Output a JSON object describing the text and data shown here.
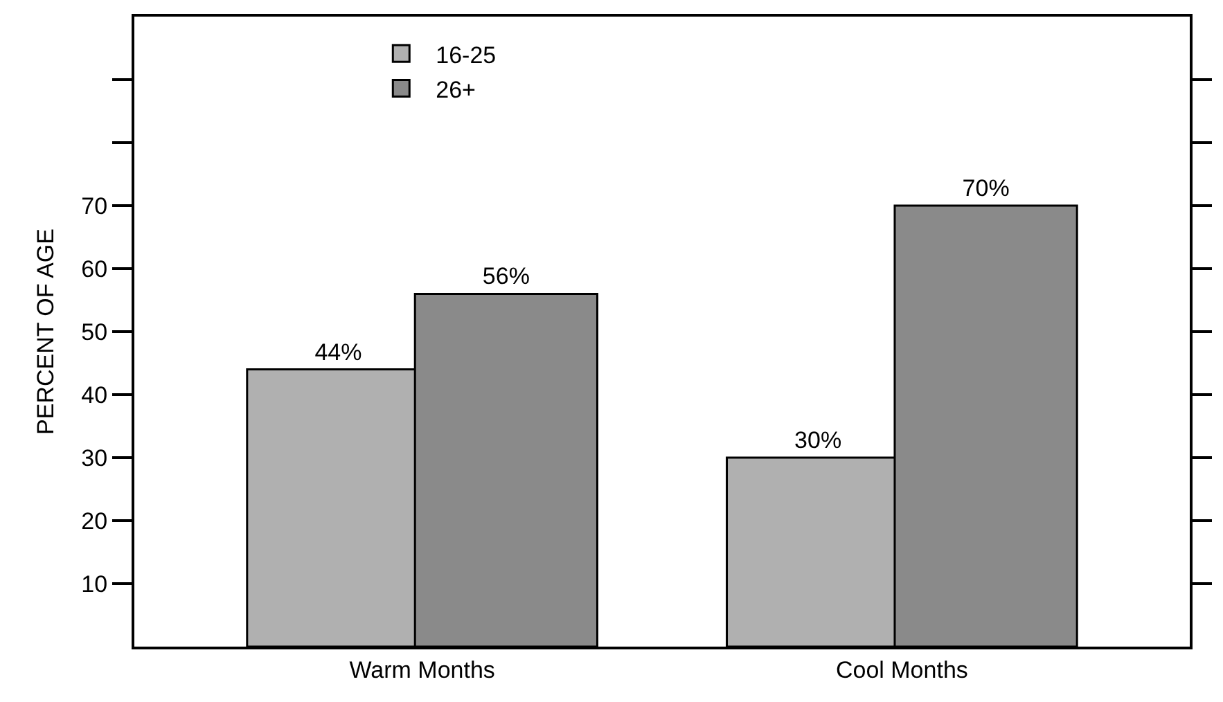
{
  "chart_data": {
    "type": "bar",
    "ylabel": "PERCENT OF AGE",
    "categories": [
      "Warm Months",
      "Cool Months"
    ],
    "series": [
      {
        "name": "16-25",
        "color": "#b0b0b0",
        "values": [
          44,
          30
        ],
        "value_labels": [
          "44%",
          "30%"
        ]
      },
      {
        "name": "26+",
        "color": "#8a8a8a",
        "values": [
          56,
          70
        ],
        "value_labels": [
          "56%",
          "70%"
        ]
      }
    ],
    "ylim": [
      0,
      100
    ],
    "yticks": [
      10,
      20,
      30,
      40,
      50,
      60,
      70,
      {
        "value": 80,
        "label": null
      },
      {
        "value": 90,
        "label": null
      }
    ],
    "legend": "top left"
  }
}
